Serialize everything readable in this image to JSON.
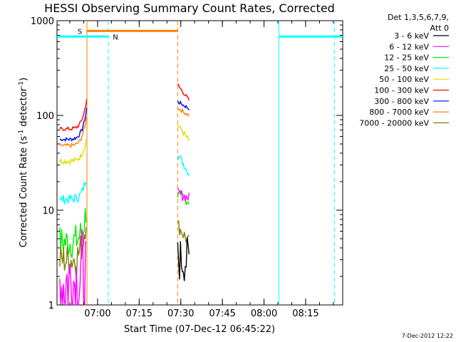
{
  "chart_data": {
    "type": "line",
    "title": "HESSI Observing Summary Count Rates, Corrected",
    "xlabel": "Start Time (07-Dec-12 06:45:22)",
    "ylabel_main": "Corrected Count Rate (s",
    "ylabel_sup": "-1",
    "ylabel_mid": " detector",
    "ylabel_end": ")",
    "ylog": true,
    "ylim": [
      1,
      1000
    ],
    "xlim_minutes": [
      0,
      103
    ],
    "x_ticks": [
      {
        "label": "07:00",
        "min": 14.63
      },
      {
        "label": "07:15",
        "min": 29.63
      },
      {
        "label": "07:30",
        "min": 44.63
      },
      {
        "label": "07:45",
        "min": 59.63
      },
      {
        "label": "08:00",
        "min": 74.63
      },
      {
        "label": "08:15",
        "min": 89.63
      }
    ],
    "y_ticks": [
      {
        "label": "1",
        "value": 1
      },
      {
        "label": "10",
        "value": 10
      },
      {
        "label": "100",
        "value": 100
      },
      {
        "label": "1000",
        "value": 1000
      }
    ],
    "legend": {
      "header1": "Det 1,3,5,6,7,9,",
      "header2": "Att 0",
      "placement": "right"
    },
    "series": [
      {
        "name": "3 - 6 keV",
        "color": "#000000",
        "segments": [
          {
            "x0": 43.5,
            "x1": 47.6,
            "y0": 3.0,
            "y1": 3.0,
            "noise": 0.25,
            "dash": false
          }
        ]
      },
      {
        "name": "6 - 12 keV",
        "color": "#ff00ff",
        "segments": [
          {
            "x0": 1.0,
            "x1": 10.3,
            "y0": 1.7,
            "y1": 2.0,
            "noise": 0.55,
            "dash": false
          },
          {
            "x0": 43.5,
            "x1": 47.6,
            "y0": 15.0,
            "y1": 13.5,
            "noise": 0.06,
            "dash": false
          }
        ]
      },
      {
        "name": "12 - 25 keV",
        "color": "#00ee00",
        "segments": [
          {
            "x0": 1.0,
            "x1": 10.5,
            "y0": 4.6,
            "y1": 10.0,
            "noise": 0.18,
            "dash": false
          },
          {
            "x0": 43.5,
            "x1": 47.6,
            "y0": 14.5,
            "y1": 12.5,
            "noise": 0.06,
            "dash": false
          }
        ]
      },
      {
        "name": "25 - 50 keV",
        "color": "#00ffff",
        "segments": [
          {
            "x0": 1.0,
            "x1": 10.5,
            "y0": 13.0,
            "y1": 22.0,
            "noise": 0.05,
            "dash": false
          },
          {
            "x0": 43.5,
            "x1": 47.6,
            "y0": 40.0,
            "y1": 24.0,
            "noise": 0.04,
            "dash": false
          }
        ]
      },
      {
        "name": "50 - 100 keV",
        "color": "#dddd00",
        "segments": [
          {
            "x0": 1.0,
            "x1": 10.5,
            "y0": 33.0,
            "y1": 55.0,
            "noise": 0.03,
            "dash": false
          },
          {
            "x0": 43.5,
            "x1": 47.6,
            "y0": 80.0,
            "y1": 54.0,
            "noise": 0.03,
            "dash": false
          }
        ]
      },
      {
        "name": "100 - 300 keV",
        "color": "#ff0000",
        "segments": [
          {
            "x0": 1.0,
            "x1": 10.7,
            "y0": 72.0,
            "y1": 150.0,
            "noise": 0.02,
            "dash": false
          },
          {
            "x0": 43.5,
            "x1": 47.6,
            "y0": 210.0,
            "y1": 145.0,
            "noise": 0.02,
            "dash": false
          }
        ]
      },
      {
        "name": "300 - 800 keV",
        "color": "#0000ff",
        "segments": [
          {
            "x0": 1.0,
            "x1": 10.7,
            "y0": 56.0,
            "y1": 120.0,
            "noise": 0.02,
            "dash": false
          },
          {
            "x0": 43.5,
            "x1": 47.6,
            "y0": 140.0,
            "y1": 118.0,
            "noise": 0.02,
            "dash": false
          }
        ]
      },
      {
        "name": "800 - 7000 keV",
        "color": "#ff8000",
        "segments": [
          {
            "x0": 1.0,
            "x1": 10.6,
            "y0": 48.0,
            "y1": 95.0,
            "noise": 0.02,
            "dash": false
          },
          {
            "x0": 43.5,
            "x1": 47.6,
            "y0": 120.0,
            "y1": 100.0,
            "noise": 0.02,
            "dash": false
          }
        ]
      },
      {
        "name": "7000 - 20000 keV",
        "color": "#808000",
        "segments": [
          {
            "x0": 1.0,
            "x1": 10.5,
            "y0": 3.0,
            "y1": 9.0,
            "noise": 0.18,
            "dash": false
          },
          {
            "x0": 43.5,
            "x1": 47.6,
            "y0": 7.0,
            "y1": 4.5,
            "noise": 0.08,
            "dash": false
          }
        ]
      }
    ],
    "flags": {
      "saa": {
        "label": "S",
        "color": "#ff8000",
        "start_min": 10.8,
        "end_min": 43.5,
        "level": 780
      },
      "night": [
        {
          "label": "N",
          "color": "#00ffff",
          "start_min": 0,
          "end_min": 18.5,
          "level": 680
        },
        {
          "label": "",
          "color": "#00ffff",
          "start_min": 80.0,
          "end_min": 103,
          "level": 680
        }
      ],
      "vlines": [
        {
          "min": 10.8,
          "color": "#ff8000",
          "dashed": false
        },
        {
          "min": 43.5,
          "color": "#ff8000",
          "dashed": true
        },
        {
          "min": 18.5,
          "color": "#00ffff",
          "dashed": true
        },
        {
          "min": 80.0,
          "color": "#00ffff",
          "dashed": false
        },
        {
          "min": 100.0,
          "color": "#00ffff",
          "dashed": true
        }
      ]
    }
  },
  "footer": {
    "timestamp": "7-Dec-2012 12:22"
  }
}
